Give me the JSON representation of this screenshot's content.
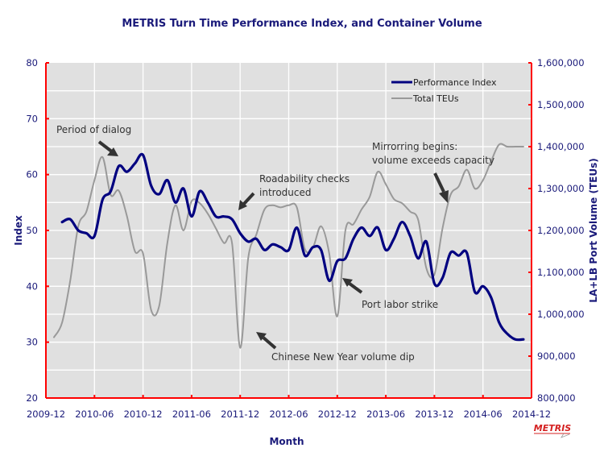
{
  "chart_data": {
    "type": "line",
    "title": "METRIS Turn Time Performance Index, and Container Volume",
    "xlabel": "Month",
    "ylabel": "Index",
    "y2label": "LA+LB Port Volume (TEUs)",
    "x_ticks": [
      "2009-12",
      "2010-06",
      "2010-12",
      "2011-06",
      "2011-12",
      "2012-06",
      "2012-12",
      "2013-06",
      "2013-12",
      "2014-06",
      "2014-12"
    ],
    "xlim_months": [
      0,
      60
    ],
    "ylim": [
      20,
      80
    ],
    "y_ticks": [
      "20",
      "30",
      "40",
      "50",
      "60",
      "70",
      "80"
    ],
    "y2lim": [
      800000,
      1600000
    ],
    "y2_ticks": [
      "800,000",
      "900,000",
      "1,000,000",
      "1,100,000",
      "1,200,000",
      "1,300,000",
      "1,400,000",
      "1,500,000",
      "1,600,000"
    ],
    "grid": true,
    "legend_position": "top-right",
    "series": [
      {
        "name": "Performance Index",
        "axis": "left",
        "color": "#000080",
        "x_months": [
          2,
          3,
          4,
          5,
          6,
          7,
          8,
          9,
          10,
          11,
          12,
          13,
          14,
          15,
          16,
          17,
          18,
          19,
          20,
          21,
          22,
          23,
          24,
          25,
          26,
          27,
          28,
          29,
          30,
          31,
          32,
          33,
          34,
          35,
          36,
          37,
          38,
          39,
          40,
          41,
          42,
          43,
          44,
          45,
          46,
          47,
          48,
          49,
          50,
          51,
          52,
          53,
          54,
          55,
          56,
          57,
          58,
          59
        ],
        "values": [
          51.5,
          52,
          50,
          49.5,
          49,
          55.5,
          57,
          61.5,
          60.5,
          62,
          63.5,
          58,
          56.5,
          59,
          55,
          57.5,
          52.5,
          57,
          55,
          52.5,
          52.5,
          52,
          49.5,
          48,
          48.5,
          46.5,
          47.5,
          47,
          46.5,
          50.5,
          45.5,
          47,
          46.5,
          41,
          44.5,
          45,
          48.5,
          50.5,
          49,
          50.5,
          46.5,
          48.5,
          51.5,
          49,
          45,
          48,
          40.5,
          41.5,
          46,
          45.5,
          46,
          39,
          40,
          38,
          33.5,
          31.5,
          30.5,
          30.5
        ]
      },
      {
        "name": "Total TEUs",
        "axis": "right",
        "color": "#999999",
        "x_months": [
          1,
          2,
          3,
          4,
          5,
          6,
          7,
          8,
          9,
          10,
          11,
          12,
          13,
          14,
          15,
          16,
          17,
          18,
          19,
          20,
          21,
          22,
          23,
          24,
          25,
          26,
          27,
          28,
          29,
          30,
          31,
          32,
          33,
          34,
          35,
          36,
          37,
          38,
          39,
          40,
          41,
          42,
          43,
          44,
          45,
          46,
          47,
          48,
          49,
          50,
          51,
          52,
          53,
          54,
          55,
          56,
          57,
          58,
          59
        ],
        "values": [
          945000,
          980000,
          1080000,
          1210000,
          1245000,
          1320000,
          1375000,
          1285000,
          1295000,
          1235000,
          1150000,
          1145000,
          1010000,
          1020000,
          1170000,
          1260000,
          1200000,
          1270000,
          1265000,
          1240000,
          1205000,
          1170000,
          1170000,
          920000,
          1135000,
          1190000,
          1250000,
          1260000,
          1255000,
          1260000,
          1255000,
          1155000,
          1160000,
          1210000,
          1145000,
          995000,
          1200000,
          1215000,
          1250000,
          1280000,
          1340000,
          1310000,
          1275000,
          1265000,
          1245000,
          1225000,
          1110000,
          1095000,
          1205000,
          1285000,
          1305000,
          1345000,
          1300000,
          1320000,
          1365000,
          1405000,
          1400000,
          1400000,
          1400000
        ]
      }
    ],
    "annotations": [
      {
        "text": "Period of dialog"
      },
      {
        "text": "Roadability checks",
        "text2": "introduced"
      },
      {
        "text": "Chinese New Year volume dip"
      },
      {
        "text": "Port labor strike"
      },
      {
        "text": "Mirrorring begins:",
        "text2": "volume exceeds capacity"
      }
    ],
    "logo_text": "METRIS"
  }
}
